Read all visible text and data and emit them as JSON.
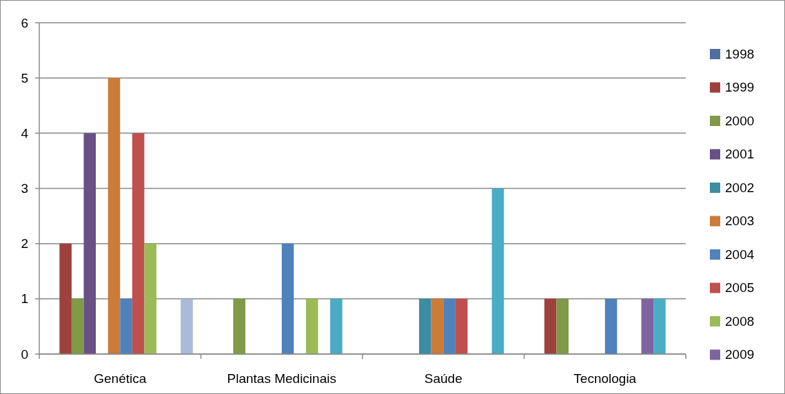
{
  "chart_data": {
    "type": "bar",
    "categories": [
      "Genética",
      "Plantas Medicinais",
      "Saúde",
      "Tecnologia"
    ],
    "series": [
      {
        "name": "1998",
        "color": "#4f6fa0",
        "values": [
          null,
          null,
          null,
          null
        ]
      },
      {
        "name": "1999",
        "color": "#9e413e",
        "values": [
          2,
          null,
          null,
          1
        ]
      },
      {
        "name": "2000",
        "color": "#809a48",
        "values": [
          1,
          1,
          null,
          1
        ]
      },
      {
        "name": "2001",
        "color": "#695185",
        "values": [
          4,
          null,
          null,
          null
        ]
      },
      {
        "name": "2002",
        "color": "#3c8ca3",
        "values": [
          null,
          null,
          1,
          null
        ]
      },
      {
        "name": "2003",
        "color": "#cc7b38",
        "values": [
          5,
          null,
          1,
          null
        ]
      },
      {
        "name": "2004",
        "color": "#4f81bd",
        "values": [
          1,
          2,
          1,
          1
        ]
      },
      {
        "name": "2005",
        "color": "#c0504d",
        "values": [
          4,
          null,
          1,
          null
        ]
      },
      {
        "name": "2008",
        "color": "#9bbb59",
        "values": [
          2,
          1,
          null,
          null
        ]
      },
      {
        "name": "2009",
        "color": "#8064a2",
        "values": [
          null,
          null,
          null,
          1
        ]
      },
      {
        "color": "#4bacc6",
        "values": [
          null,
          1,
          3,
          1
        ]
      },
      {
        "color": "#aabad7",
        "values": [
          1,
          null,
          null,
          null
        ]
      }
    ],
    "ylim": [
      0,
      6
    ],
    "yticks": [
      0,
      1,
      2,
      3,
      4,
      5,
      6
    ],
    "grid": "y",
    "legend": "right"
  }
}
